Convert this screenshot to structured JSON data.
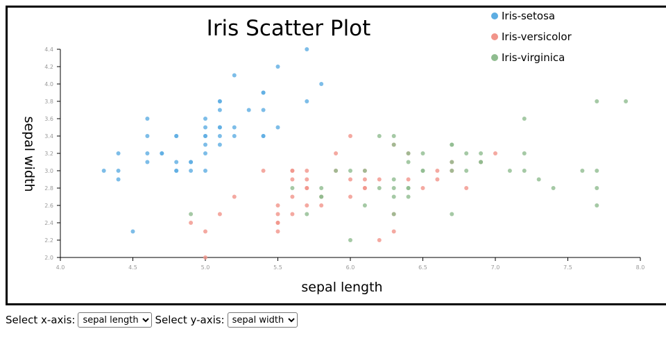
{
  "chart_data": {
    "type": "scatter",
    "title": "Iris Scatter Plot",
    "xlabel": "sepal length",
    "ylabel": "sepal width",
    "xlim": [
      4.0,
      8.0
    ],
    "ylim": [
      2.0,
      4.4
    ],
    "x_ticks": [
      "4.0",
      "4.5",
      "5.0",
      "5.5",
      "6.0",
      "6.5",
      "7.0",
      "7.5",
      "8.0"
    ],
    "y_ticks": [
      "2.0",
      "2.2",
      "2.4",
      "2.6",
      "2.8",
      "3.0",
      "3.2",
      "3.4",
      "3.6",
      "3.8",
      "4.0",
      "4.2",
      "4.4"
    ],
    "grid": false,
    "legend_position": "top-right",
    "series": [
      {
        "name": "Iris-setosa",
        "color": "#5dade2",
        "points": [
          [
            4.3,
            3.0
          ],
          [
            4.4,
            3.0
          ],
          [
            4.4,
            3.2
          ],
          [
            4.4,
            2.9
          ],
          [
            4.5,
            2.3
          ],
          [
            4.6,
            3.6
          ],
          [
            4.6,
            3.4
          ],
          [
            4.6,
            3.2
          ],
          [
            4.6,
            3.1
          ],
          [
            4.7,
            3.2
          ],
          [
            4.7,
            3.2
          ],
          [
            4.8,
            3.4
          ],
          [
            4.8,
            3.4
          ],
          [
            4.8,
            3.1
          ],
          [
            4.8,
            3.0
          ],
          [
            4.8,
            3.0
          ],
          [
            4.9,
            3.1
          ],
          [
            4.9,
            3.1
          ],
          [
            4.9,
            3.0
          ],
          [
            5.0,
            3.6
          ],
          [
            5.0,
            3.5
          ],
          [
            5.0,
            3.4
          ],
          [
            5.0,
            3.4
          ],
          [
            5.0,
            3.3
          ],
          [
            5.0,
            3.2
          ],
          [
            5.0,
            3.0
          ],
          [
            5.1,
            3.8
          ],
          [
            5.1,
            3.8
          ],
          [
            5.1,
            3.7
          ],
          [
            5.1,
            3.5
          ],
          [
            5.1,
            3.5
          ],
          [
            5.1,
            3.4
          ],
          [
            5.1,
            3.3
          ],
          [
            5.2,
            4.1
          ],
          [
            5.2,
            3.5
          ],
          [
            5.2,
            3.4
          ],
          [
            5.3,
            3.7
          ],
          [
            5.4,
            3.9
          ],
          [
            5.4,
            3.9
          ],
          [
            5.4,
            3.7
          ],
          [
            5.4,
            3.4
          ],
          [
            5.4,
            3.4
          ],
          [
            5.5,
            4.2
          ],
          [
            5.5,
            3.5
          ],
          [
            5.7,
            4.4
          ],
          [
            5.7,
            3.8
          ],
          [
            5.8,
            4.0
          ]
        ]
      },
      {
        "name": "Iris-versicolor",
        "color": "#f1948a",
        "points": [
          [
            4.9,
            2.4
          ],
          [
            5.0,
            2.3
          ],
          [
            5.0,
            2.0
          ],
          [
            5.1,
            2.5
          ],
          [
            5.2,
            2.7
          ],
          [
            5.4,
            3.0
          ],
          [
            5.5,
            2.6
          ],
          [
            5.5,
            2.5
          ],
          [
            5.5,
            2.4
          ],
          [
            5.5,
            2.4
          ],
          [
            5.5,
            2.3
          ],
          [
            5.6,
            3.0
          ],
          [
            5.6,
            3.0
          ],
          [
            5.6,
            2.9
          ],
          [
            5.6,
            2.7
          ],
          [
            5.6,
            2.5
          ],
          [
            5.7,
            3.0
          ],
          [
            5.7,
            2.9
          ],
          [
            5.7,
            2.8
          ],
          [
            5.7,
            2.8
          ],
          [
            5.7,
            2.6
          ],
          [
            5.8,
            2.7
          ],
          [
            5.8,
            2.6
          ],
          [
            5.9,
            3.2
          ],
          [
            5.9,
            3.0
          ],
          [
            6.0,
            3.4
          ],
          [
            6.0,
            2.9
          ],
          [
            6.0,
            2.7
          ],
          [
            6.1,
            3.0
          ],
          [
            6.1,
            2.9
          ],
          [
            6.1,
            2.8
          ],
          [
            6.1,
            2.8
          ],
          [
            6.2,
            2.9
          ],
          [
            6.2,
            2.2
          ],
          [
            6.3,
            3.3
          ],
          [
            6.3,
            2.5
          ],
          [
            6.3,
            2.3
          ],
          [
            6.4,
            3.2
          ],
          [
            6.4,
            2.9
          ],
          [
            6.5,
            2.8
          ],
          [
            6.6,
            3.0
          ],
          [
            6.6,
            2.9
          ],
          [
            6.7,
            3.1
          ],
          [
            6.7,
            3.0
          ],
          [
            6.8,
            2.8
          ],
          [
            6.9,
            3.1
          ],
          [
            7.0,
            3.2
          ]
        ]
      },
      {
        "name": "Iris-virginica",
        "color": "#8fbc8f",
        "points": [
          [
            4.9,
            2.5
          ],
          [
            5.6,
            2.8
          ],
          [
            5.7,
            2.5
          ],
          [
            5.8,
            2.8
          ],
          [
            5.8,
            2.7
          ],
          [
            5.8,
            2.7
          ],
          [
            5.9,
            3.0
          ],
          [
            6.0,
            3.0
          ],
          [
            6.0,
            2.2
          ],
          [
            6.1,
            3.0
          ],
          [
            6.1,
            2.6
          ],
          [
            6.2,
            3.4
          ],
          [
            6.2,
            2.8
          ],
          [
            6.3,
            3.4
          ],
          [
            6.3,
            3.3
          ],
          [
            6.3,
            2.9
          ],
          [
            6.3,
            2.8
          ],
          [
            6.3,
            2.7
          ],
          [
            6.3,
            2.5
          ],
          [
            6.4,
            3.2
          ],
          [
            6.4,
            3.1
          ],
          [
            6.4,
            2.8
          ],
          [
            6.4,
            2.8
          ],
          [
            6.4,
            2.7
          ],
          [
            6.5,
            3.2
          ],
          [
            6.5,
            3.0
          ],
          [
            6.5,
            3.0
          ],
          [
            6.7,
            3.3
          ],
          [
            6.7,
            3.3
          ],
          [
            6.7,
            3.1
          ],
          [
            6.7,
            3.0
          ],
          [
            6.7,
            2.5
          ],
          [
            6.8,
            3.2
          ],
          [
            6.8,
            3.0
          ],
          [
            6.9,
            3.2
          ],
          [
            6.9,
            3.1
          ],
          [
            6.9,
            3.1
          ],
          [
            7.1,
            3.0
          ],
          [
            7.2,
            3.6
          ],
          [
            7.2,
            3.2
          ],
          [
            7.2,
            3.0
          ],
          [
            7.3,
            2.9
          ],
          [
            7.4,
            2.8
          ],
          [
            7.6,
            3.0
          ],
          [
            7.7,
            3.8
          ],
          [
            7.7,
            3.0
          ],
          [
            7.7,
            2.8
          ],
          [
            7.7,
            2.6
          ],
          [
            7.9,
            3.8
          ]
        ]
      }
    ]
  },
  "controls": {
    "x_label": "Select x-axis:",
    "y_label": "Select y-axis:",
    "x_selected": "sepal length",
    "y_selected": "sepal width"
  }
}
